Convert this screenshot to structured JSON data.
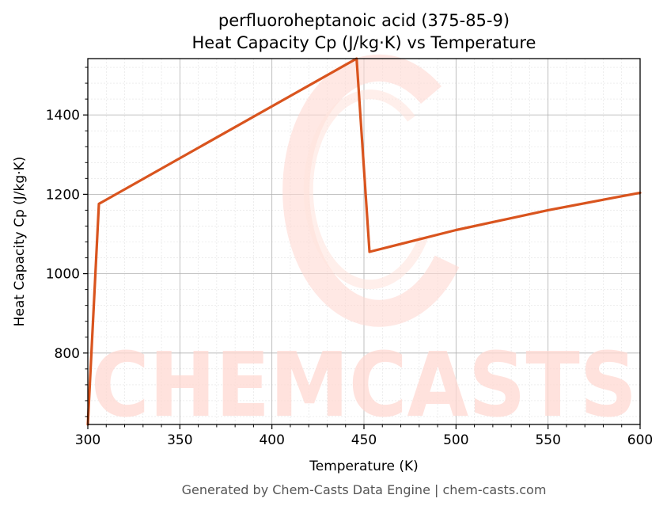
{
  "chart_data": {
    "type": "line",
    "title_line1": "perfluoroheptanoic acid (375-85-9)",
    "title_line2": "Heat Capacity Cp (J/kg·K) vs Temperature",
    "xlabel": "Temperature (K)",
    "ylabel": "Heat Capacity Cp (J/kg·K)",
    "xlim": [
      300,
      600
    ],
    "ylim": [
      620,
      1542
    ],
    "xticks": [
      300,
      350,
      400,
      450,
      500,
      550,
      600
    ],
    "yticks": [
      800,
      1000,
      1200,
      1400
    ],
    "grid": true,
    "series": [
      {
        "color": "#d9541e",
        "x": [
          300,
          306,
          446,
          453,
          500,
          550,
          600
        ],
        "y": [
          620,
          1176,
          1542,
          1055,
          1110,
          1160,
          1204
        ]
      }
    ]
  },
  "watermark": {
    "text": "CHEMCASTS",
    "color": "#ffd9d2"
  },
  "footer": "Generated by Chem-Casts Data Engine | chem-casts.com"
}
